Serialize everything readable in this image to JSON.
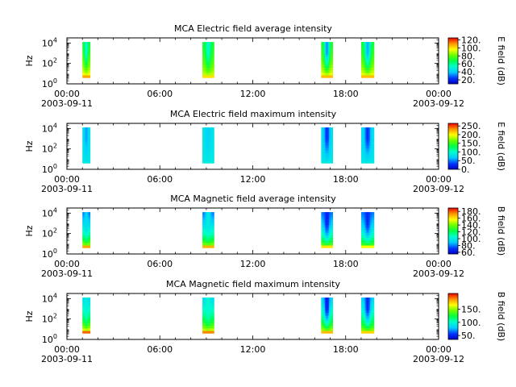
{
  "chart_data": [
    {
      "type": "heatmap",
      "title": "MCA  Electric field average intensity",
      "ylabel": "Hz",
      "colorbar_label": "E field (dB)",
      "colorbar_range": [
        10,
        125
      ],
      "colorbar_ticks": [
        "20.",
        "40.",
        "60.",
        "80.",
        "100.",
        "120."
      ],
      "colorbar_tick_values": [
        20,
        40,
        60,
        80,
        100,
        120
      ],
      "x_tick_labels": [
        "00:00",
        "06:00",
        "12:00",
        "18:00",
        "00:00"
      ],
      "x_date_labels": [
        "2003-09-11",
        "2003-09-12"
      ],
      "xlim": [
        "2003-09-11 00:00",
        "2003-09-12 00:00"
      ],
      "y_scale": "log",
      "y_tick_labels": [
        "0",
        "2",
        "4"
      ],
      "ylim_exponents": [
        0,
        4.5
      ],
      "bursts": [
        {
          "start": "01:00",
          "end": "01:30",
          "low_freq_value": 108,
          "high_freq_value": 70,
          "core_value": 50
        },
        {
          "start": "08:45",
          "end": "09:30",
          "low_freq_value": 100,
          "high_freq_value": 70,
          "core_value": 52
        },
        {
          "start": "16:25",
          "end": "17:10",
          "low_freq_value": 105,
          "high_freq_value": 72,
          "core_value": 32
        },
        {
          "start": "19:00",
          "end": "19:50",
          "low_freq_value": 105,
          "high_freq_value": 70,
          "core_value": 35
        }
      ]
    },
    {
      "type": "heatmap",
      "title": "MCA  Electric field maximum intensity",
      "ylabel": "Hz",
      "colorbar_label": "E field (dB)",
      "colorbar_range": [
        0,
        265
      ],
      "colorbar_ticks": [
        "0.",
        "50.",
        "100.",
        "150.",
        "200.",
        "250."
      ],
      "colorbar_tick_values": [
        0,
        50,
        100,
        150,
        200,
        250
      ],
      "x_tick_labels": [
        "00:00",
        "06:00",
        "12:00",
        "18:00",
        "00:00"
      ],
      "x_date_labels": [
        "2003-09-11",
        "2003-09-12"
      ],
      "xlim": [
        "2003-09-11 00:00",
        "2003-09-12 00:00"
      ],
      "y_scale": "log",
      "y_tick_labels": [
        "0",
        "2",
        "4"
      ],
      "ylim_exponents": [
        0,
        4.5
      ],
      "bursts": [
        {
          "start": "01:00",
          "end": "01:30",
          "low_freq_value": 85,
          "high_freq_value": 80,
          "core_value": 55
        },
        {
          "start": "08:45",
          "end": "09:30",
          "low_freq_value": 88,
          "high_freq_value": 82,
          "core_value": 70
        },
        {
          "start": "16:25",
          "end": "17:10",
          "low_freq_value": 85,
          "high_freq_value": 80,
          "core_value": 25
        },
        {
          "start": "19:00",
          "end": "19:50",
          "low_freq_value": 85,
          "high_freq_value": 80,
          "core_value": 25
        }
      ]
    },
    {
      "type": "heatmap",
      "title": "MCA  Magnetic field average intensity",
      "ylabel": "Hz",
      "colorbar_label": "B field (dB)",
      "colorbar_range": [
        55,
        190
      ],
      "colorbar_ticks": [
        "60.",
        "80.",
        "100.",
        "120.",
        "140.",
        "160.",
        "180."
      ],
      "colorbar_tick_values": [
        60,
        80,
        100,
        120,
        140,
        160,
        180
      ],
      "x_tick_labels": [
        "00:00",
        "06:00",
        "12:00",
        "18:00",
        "00:00"
      ],
      "x_date_labels": [
        "2003-09-11",
        "2003-09-12"
      ],
      "xlim": [
        "2003-09-11 00:00",
        "2003-09-12 00:00"
      ],
      "y_scale": "log",
      "y_tick_labels": [
        "0",
        "2",
        "4"
      ],
      "ylim_exponents": [
        0,
        4.5
      ],
      "bursts": [
        {
          "start": "01:00",
          "end": "01:30",
          "low_freq_value": 170,
          "high_freq_value": 80,
          "core_value": 95
        },
        {
          "start": "08:45",
          "end": "09:30",
          "low_freq_value": 168,
          "high_freq_value": 80,
          "core_value": 100
        },
        {
          "start": "16:25",
          "end": "17:10",
          "low_freq_value": 160,
          "high_freq_value": 80,
          "core_value": 65
        },
        {
          "start": "19:00",
          "end": "19:50",
          "low_freq_value": 155,
          "high_freq_value": 80,
          "core_value": 68
        }
      ]
    },
    {
      "type": "heatmap",
      "title": "MCA  Magnetic field maximum intensity",
      "ylabel": "Hz",
      "colorbar_label": "B field (dB)",
      "colorbar_range": [
        35,
        210
      ],
      "colorbar_ticks": [
        "50.",
        "100.",
        "150."
      ],
      "colorbar_tick_values": [
        50,
        100,
        150
      ],
      "x_tick_labels": [
        "00:00",
        "06:00",
        "12:00",
        "18:00",
        "00:00"
      ],
      "x_date_labels": [
        "2003-09-11",
        "2003-09-12"
      ],
      "xlim": [
        "2003-09-11 00:00",
        "2003-09-12 00:00"
      ],
      "y_scale": "log",
      "y_tick_labels": [
        "0",
        "2",
        "4"
      ],
      "ylim_exponents": [
        0,
        4.5
      ],
      "bursts": [
        {
          "start": "01:00",
          "end": "01:30",
          "low_freq_value": 195,
          "high_freq_value": 85,
          "core_value": 95
        },
        {
          "start": "08:45",
          "end": "09:30",
          "low_freq_value": 190,
          "high_freq_value": 85,
          "core_value": 100
        },
        {
          "start": "16:25",
          "end": "17:10",
          "low_freq_value": 180,
          "high_freq_value": 85,
          "core_value": 45
        },
        {
          "start": "19:00",
          "end": "19:50",
          "low_freq_value": 175,
          "high_freq_value": 85,
          "core_value": 50
        }
      ]
    }
  ]
}
